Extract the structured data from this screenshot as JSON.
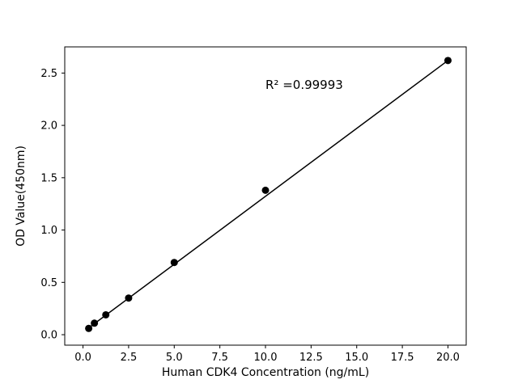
{
  "chart_data": {
    "type": "scatter",
    "title": "",
    "xlabel": "Human CDK4 Concentration (ng/mL)",
    "ylabel": "OD Value(450nm)",
    "x": [
      0.313,
      0.625,
      1.25,
      2.5,
      5,
      10,
      20
    ],
    "y": [
      0.06,
      0.11,
      0.19,
      0.35,
      0.69,
      1.38,
      2.62
    ],
    "fit_line": {
      "x": [
        0.313,
        20
      ],
      "y": [
        0.065,
        2.62
      ]
    },
    "annotation": {
      "text": "R² =0.99993",
      "x": 10,
      "y": 2.35
    },
    "xlim": [
      -1,
      21
    ],
    "ylim": [
      -0.1,
      2.75
    ],
    "xticks": [
      0.0,
      2.5,
      5.0,
      7.5,
      10.0,
      12.5,
      15.0,
      17.5,
      20.0
    ],
    "xtick_labels": [
      "0.0",
      "2.5",
      "5.0",
      "7.5",
      "10.0",
      "12.5",
      "15.0",
      "17.5",
      "20.0"
    ],
    "yticks": [
      0.0,
      0.5,
      1.0,
      1.5,
      2.0,
      2.5
    ],
    "ytick_labels": [
      "0.0",
      "0.5",
      "1.0",
      "1.5",
      "2.0",
      "2.5"
    ],
    "grid": false,
    "legend": null,
    "marker_color": "#000000",
    "line_color": "#000000",
    "background_color": "#ffffff"
  }
}
